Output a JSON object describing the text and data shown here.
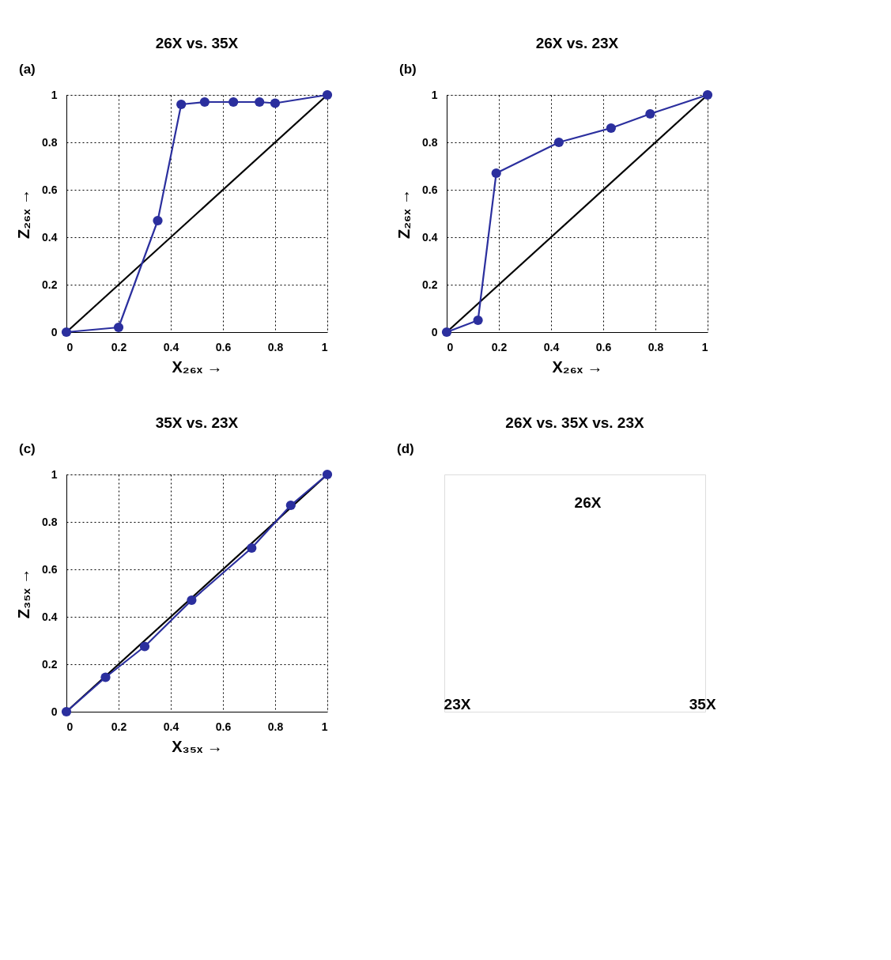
{
  "chart_data": [
    {
      "type": "line",
      "title": "26X vs. 35X",
      "xlabel": "X₂₆ₓ →",
      "ylabel": "Z₂₆ₓ →",
      "annotations": [
        "(a)"
      ],
      "xlim": [
        0,
        1
      ],
      "ylim": [
        0,
        1
      ],
      "xticks": [
        0,
        0.2,
        0.4,
        0.6,
        0.8,
        1
      ],
      "yticks": [
        0,
        0.2,
        0.4,
        0.6,
        0.8,
        1
      ],
      "grid": true,
      "series": [
        {
          "type": "line",
          "color": "#000000",
          "x": [
            0,
            1
          ],
          "values": [
            0,
            1
          ],
          "marker": "none"
        },
        {
          "type": "line",
          "color": "#2b2f9e",
          "marker": "circle",
          "x": [
            0,
            0.2,
            0.35,
            0.44,
            0.53,
            0.64,
            0.74,
            0.8,
            1
          ],
          "values": [
            0,
            0.02,
            0.47,
            0.96,
            0.97,
            0.97,
            0.97,
            0.965,
            1
          ]
        }
      ]
    },
    {
      "type": "line",
      "title": "26X vs. 23X",
      "xlabel": "X₂₆ₓ →",
      "ylabel": "Z₂₆ₓ →",
      "annotations": [
        "(b)"
      ],
      "xlim": [
        0,
        1
      ],
      "ylim": [
        0,
        1
      ],
      "xticks": [
        0,
        0.2,
        0.4,
        0.6,
        0.8,
        1
      ],
      "yticks": [
        0,
        0.2,
        0.4,
        0.6,
        0.8,
        1
      ],
      "grid": true,
      "series": [
        {
          "type": "line",
          "color": "#000000",
          "x": [
            0,
            1
          ],
          "values": [
            0,
            1
          ],
          "marker": "none"
        },
        {
          "type": "line",
          "color": "#2b2f9e",
          "marker": "circle",
          "x": [
            0,
            0.12,
            0.19,
            0.43,
            0.63,
            0.78,
            1
          ],
          "values": [
            0,
            0.05,
            0.67,
            0.8,
            0.86,
            0.92,
            1
          ]
        }
      ]
    },
    {
      "type": "line",
      "title": "35X vs. 23X",
      "xlabel": "X₃₅ₓ →",
      "ylabel": "Z₃₅ₓ →",
      "annotations": [
        "(c)"
      ],
      "xlim": [
        0,
        1
      ],
      "ylim": [
        0,
        1
      ],
      "xticks": [
        0,
        0.2,
        0.4,
        0.6,
        0.8,
        1
      ],
      "yticks": [
        0,
        0.2,
        0.4,
        0.6,
        0.8,
        1
      ],
      "grid": true,
      "series": [
        {
          "type": "line",
          "color": "#000000",
          "x": [
            0,
            1
          ],
          "values": [
            0,
            1
          ],
          "marker": "none"
        },
        {
          "type": "line",
          "color": "#2b2f9e",
          "marker": "circle",
          "x": [
            0,
            0.15,
            0.3,
            0.48,
            0.71,
            0.86,
            1
          ],
          "values": [
            0,
            0.145,
            0.275,
            0.47,
            0.69,
            0.87,
            1
          ]
        }
      ]
    },
    {
      "type": "other",
      "title": "26X vs. 35X vs. 23X",
      "annotations": [
        "(d)",
        "26X",
        "23X",
        "35X"
      ]
    }
  ]
}
